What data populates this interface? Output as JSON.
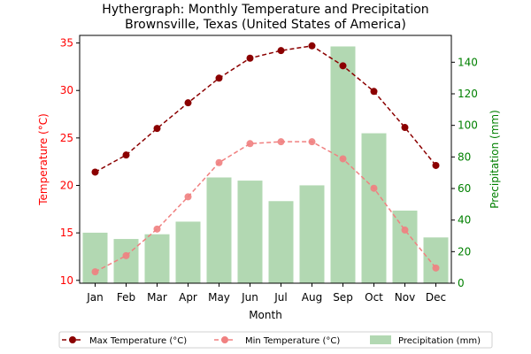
{
  "chart_data": {
    "type": "bar",
    "title": "Hythergraph: Monthly Temperature and Precipitation",
    "subtitle": "Brownsville, Texas (United States of America)",
    "xlabel": "Month",
    "ylabel_left": "Temperature (°C)",
    "ylabel_right": "Precipitation (mm)",
    "categories": [
      "Jan",
      "Feb",
      "Mar",
      "Apr",
      "May",
      "Jun",
      "Jul",
      "Aug",
      "Sep",
      "Oct",
      "Nov",
      "Dec"
    ],
    "ylim_left": [
      9.7,
      35.8
    ],
    "ylim_right": [
      0,
      157
    ],
    "yticks_left": [
      "10",
      "15",
      "20",
      "25",
      "30",
      "35"
    ],
    "yticks_right": [
      "0",
      "20",
      "40",
      "60",
      "80",
      "100",
      "120",
      "140"
    ],
    "grid": false,
    "legend_position": "bottom",
    "series": [
      {
        "name": "Max Temperature (°C)",
        "kind": "line",
        "axis": "left",
        "color": "#8b0000",
        "values": [
          21.4,
          23.2,
          26.0,
          28.7,
          31.3,
          33.4,
          34.2,
          34.7,
          32.6,
          29.9,
          26.1,
          22.1
        ]
      },
      {
        "name": "Min Temperature (°C)",
        "kind": "line",
        "axis": "left",
        "color": "#f08080",
        "values": [
          10.9,
          12.6,
          15.4,
          18.8,
          22.4,
          24.4,
          24.6,
          24.6,
          22.8,
          19.7,
          15.3,
          11.3
        ]
      },
      {
        "name": "Precipitation (mm)",
        "kind": "bar",
        "axis": "right",
        "color": "#b2d8b2",
        "values": [
          32,
          28,
          31,
          39,
          67,
          65,
          52,
          62,
          150,
          95,
          46,
          29
        ]
      }
    ],
    "axis_colors": {
      "left": "#ff0000",
      "right": "#008000",
      "text": "#000000"
    }
  }
}
